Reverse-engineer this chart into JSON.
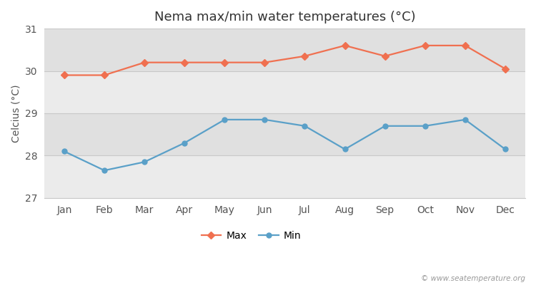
{
  "title": "Nema max/min water temperatures (°C)",
  "ylabel": "Celcius (°C)",
  "months": [
    "Jan",
    "Feb",
    "Mar",
    "Apr",
    "May",
    "Jun",
    "Jul",
    "Aug",
    "Sep",
    "Oct",
    "Nov",
    "Dec"
  ],
  "max_values": [
    29.9,
    29.9,
    30.2,
    30.2,
    30.2,
    30.2,
    30.35,
    30.6,
    30.35,
    30.6,
    30.6,
    30.05
  ],
  "min_values": [
    28.1,
    27.65,
    27.85,
    28.3,
    28.85,
    28.85,
    28.7,
    28.15,
    28.7,
    28.7,
    28.85,
    28.15
  ],
  "max_color": "#f07050",
  "min_color": "#5aA0c8",
  "ylim": [
    27.0,
    31.0
  ],
  "yticks": [
    27,
    28,
    29,
    30,
    31
  ],
  "fig_bg_color": "#ffffff",
  "plot_bg_color": "#f0f0f0",
  "band_light": "#ebebeb",
  "band_dark": "#e0e0e0",
  "grid_color": "#c8c8c8",
  "watermark": "© www.seatemperature.org",
  "legend_max": "Max",
  "legend_min": "Min",
  "title_fontsize": 13,
  "axis_fontsize": 10,
  "tick_fontsize": 10
}
